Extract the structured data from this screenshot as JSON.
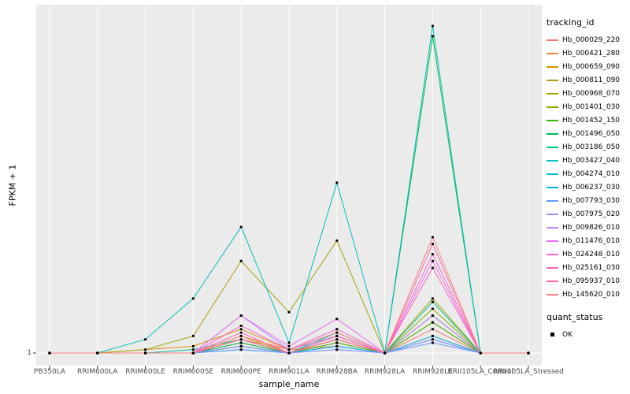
{
  "chart_data": {
    "type": "line",
    "title": "",
    "xlabel": "sample_name",
    "ylabel": "FPKM + 1",
    "y_tick_labels": [
      "1"
    ],
    "legend_position": "right",
    "series_legend_title": "tracking_id",
    "point_legend_title": "quant_status",
    "point_legend_label": "OK",
    "point_color": "#000000",
    "panel_background": "#EBEBEB",
    "grid_color": "#FFFFFF",
    "tick_color": "#333333",
    "grid": true,
    "categories": [
      "PB350LA",
      "RRIM600LA",
      "RRIM600LE",
      "RRIM600SE",
      "RRIM600PE",
      "RRIM901LA",
      "RRIM928BA",
      "RRIM928LA",
      "RRIM928LE",
      "RRII105LA_Control",
      "RRII105LA_Stressed"
    ],
    "series": [
      {
        "name": "Hb_000029_220",
        "color": "#F8766D",
        "values": [
          1,
          1,
          1,
          1,
          3,
          1,
          4,
          1,
          8,
          1,
          1
        ]
      },
      {
        "name": "Hb_000421_280",
        "color": "#EA8331",
        "values": [
          1,
          1,
          1,
          1,
          5,
          2,
          3,
          1,
          6,
          1,
          1
        ]
      },
      {
        "name": "Hb_000659_090",
        "color": "#D89000",
        "values": [
          1,
          1,
          2,
          3,
          8,
          2,
          6,
          1,
          10,
          1,
          1
        ]
      },
      {
        "name": "Hb_000811_090",
        "color": "#C09B00",
        "values": [
          1,
          1,
          1,
          1,
          6,
          1,
          5,
          1,
          12,
          1,
          1
        ]
      },
      {
        "name": "Hb_000968_070",
        "color": "#A3A500",
        "values": [
          1,
          1,
          2,
          6,
          28,
          13,
          34,
          1,
          17,
          1,
          1
        ]
      },
      {
        "name": "Hb_001401_030",
        "color": "#7CAE00",
        "values": [
          1,
          1,
          1,
          1,
          4,
          1,
          5,
          1,
          14,
          1,
          1
        ]
      },
      {
        "name": "Hb_001452_150",
        "color": "#39B600",
        "values": [
          1,
          1,
          1,
          1,
          3,
          1,
          4,
          1,
          10,
          1,
          1
        ]
      },
      {
        "name": "Hb_001496_050",
        "color": "#00BB4E",
        "values": [
          1,
          1,
          1,
          1,
          4,
          1,
          6,
          1,
          94,
          1,
          1
        ]
      },
      {
        "name": "Hb_003186_050",
        "color": "#00C087",
        "values": [
          1,
          1,
          1,
          2,
          5,
          1,
          7,
          1,
          16,
          1,
          1
        ]
      },
      {
        "name": "Hb_003427_040",
        "color": "#00C0B8",
        "values": [
          1,
          1,
          5,
          17,
          38,
          4,
          51,
          1,
          97,
          1,
          1
        ]
      },
      {
        "name": "Hb_004274_010",
        "color": "#00BCD8",
        "values": [
          1,
          1,
          1,
          1,
          3,
          1,
          3,
          1,
          6,
          1,
          1
        ]
      },
      {
        "name": "Hb_006237_030",
        "color": "#00B0F6",
        "values": [
          1,
          1,
          1,
          1,
          2,
          1,
          3,
          1,
          5,
          1,
          1
        ]
      },
      {
        "name": "Hb_007793_030",
        "color": "#619CFF",
        "values": [
          1,
          1,
          1,
          1,
          2,
          1,
          2,
          1,
          4,
          1,
          1
        ]
      },
      {
        "name": "Hb_007975_020",
        "color": "#9590FF",
        "values": [
          1,
          1,
          1,
          1,
          3,
          1,
          2,
          1,
          5,
          1,
          1
        ]
      },
      {
        "name": "Hb_009826_010",
        "color": "#B983FF",
        "values": [
          1,
          1,
          1,
          1,
          12,
          2,
          6,
          1,
          12,
          1,
          1
        ]
      },
      {
        "name": "Hb_011476_010",
        "color": "#E76BF3",
        "values": [
          1,
          1,
          1,
          1,
          12,
          3,
          11,
          1,
          28,
          1,
          1
        ]
      },
      {
        "name": "Hb_024248_010",
        "color": "#FD61D1",
        "values": [
          1,
          1,
          1,
          1,
          9,
          2,
          8,
          1,
          30,
          1,
          1
        ]
      },
      {
        "name": "Hb_025161_030",
        "color": "#FF62BC",
        "values": [
          1,
          1,
          1,
          1,
          7,
          1,
          6,
          1,
          26,
          1,
          1
        ]
      },
      {
        "name": "Hb_095937_010",
        "color": "#FF6A98",
        "values": [
          1,
          1,
          1,
          1,
          5,
          1,
          5,
          1,
          33,
          1,
          1
        ]
      },
      {
        "name": "Hb_145620_010",
        "color": "#FE8185",
        "values": [
          1,
          1,
          1,
          1,
          6,
          2,
          7,
          1,
          35,
          1,
          1
        ]
      }
    ]
  }
}
